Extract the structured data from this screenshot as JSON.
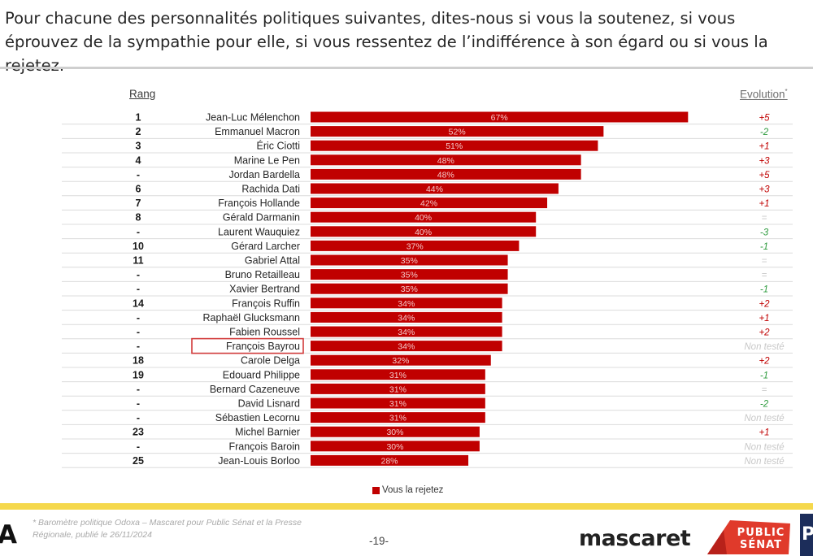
{
  "question": "Pour chacune des personnalités politiques suivantes, dites-nous si vous la soutenez, si vous éprouvez de la sympathie pour elle, si vous ressentez de l’indifférence à son égard ou si vous la rejetez.",
  "headers": {
    "rank": "Rang",
    "evolution": "Evolution",
    "evolution_mark": "*"
  },
  "colors": {
    "bar": "#c00000",
    "value_label": "#f4c9c9",
    "positive": "#c00000",
    "negative": "#2e9b3e",
    "neutral": "#c8c8c8",
    "highlight_box": "#d23c3c"
  },
  "highlighted_name": "François Bayrou",
  "chart_data": {
    "type": "bar",
    "orientation": "horizontal",
    "series_name": "Vous la rejetez",
    "value_unit": "%",
    "xlim": [
      0,
      100
    ],
    "rows": [
      {
        "rank": "1",
        "name": "Jean-Luc Mélenchon",
        "value": 67,
        "label": "67%",
        "evolution": "+5"
      },
      {
        "rank": "2",
        "name": "Emmanuel Macron",
        "value": 52,
        "label": "52%",
        "evolution": "-2"
      },
      {
        "rank": "3",
        "name": "Éric Ciotti",
        "value": 51,
        "label": "51%",
        "evolution": "+1"
      },
      {
        "rank": "4",
        "name": "Marine Le Pen",
        "value": 48,
        "label": "48%",
        "evolution": "+3"
      },
      {
        "rank": "-",
        "name": "Jordan Bardella",
        "value": 48,
        "label": "48%",
        "evolution": "+5"
      },
      {
        "rank": "6",
        "name": "Rachida Dati",
        "value": 44,
        "label": "44%",
        "evolution": "+3"
      },
      {
        "rank": "7",
        "name": "François Hollande",
        "value": 42,
        "label": "42%",
        "evolution": "+1"
      },
      {
        "rank": "8",
        "name": "Gérald Darmanin",
        "value": 40,
        "label": "40%",
        "evolution": "="
      },
      {
        "rank": "-",
        "name": "Laurent Wauquiez",
        "value": 40,
        "label": "40%",
        "evolution": "-3"
      },
      {
        "rank": "10",
        "name": "Gérard Larcher",
        "value": 37,
        "label": "37%",
        "evolution": "-1"
      },
      {
        "rank": "11",
        "name": "Gabriel Attal",
        "value": 35,
        "label": "35%",
        "evolution": "="
      },
      {
        "rank": "-",
        "name": "Bruno Retailleau",
        "value": 35,
        "label": "35%",
        "evolution": "="
      },
      {
        "rank": "-",
        "name": "Xavier Bertrand",
        "value": 35,
        "label": "35%",
        "evolution": "-1"
      },
      {
        "rank": "14",
        "name": "François Ruffin",
        "value": 34,
        "label": "34%",
        "evolution": "+2"
      },
      {
        "rank": "-",
        "name": "Raphaël Glucksmann",
        "value": 34,
        "label": "34%",
        "evolution": "+1"
      },
      {
        "rank": "-",
        "name": "Fabien Roussel",
        "value": 34,
        "label": "34%",
        "evolution": "+2"
      },
      {
        "rank": "-",
        "name": "François Bayrou",
        "value": 34,
        "label": "34%",
        "evolution": "Non testé"
      },
      {
        "rank": "18",
        "name": "Carole Delga",
        "value": 32,
        "label": "32%",
        "evolution": "+2"
      },
      {
        "rank": "19",
        "name": "Edouard Philippe",
        "value": 31,
        "label": "31%",
        "evolution": "-1"
      },
      {
        "rank": "-",
        "name": "Bernard Cazeneuve",
        "value": 31,
        "label": "31%",
        "evolution": "="
      },
      {
        "rank": "-",
        "name": "David Lisnard",
        "value": 31,
        "label": "31%",
        "evolution": "-2"
      },
      {
        "rank": "-",
        "name": "Sébastien Lecornu",
        "value": 31,
        "label": "31%",
        "evolution": "Non testé"
      },
      {
        "rank": "23",
        "name": "Michel Barnier",
        "value": 30,
        "label": "30%",
        "evolution": "+1"
      },
      {
        "rank": "-",
        "name": "François Baroin",
        "value": 30,
        "label": "30%",
        "evolution": "Non testé"
      },
      {
        "rank": "25",
        "name": "Jean-Louis Borloo",
        "value": 28,
        "label": "28%",
        "evolution": "Non testé"
      }
    ]
  },
  "legend": {
    "label": "Vous la rejetez"
  },
  "footer": {
    "footnote_line1": "* Baromètre politique Odoxa – Mascaret pour Public Sénat et la Presse",
    "footnote_line2": "Régionale, publié le 26/11/2024",
    "page_number": "-19-",
    "logo_left": "A",
    "logo_mascaret": "mascaret",
    "logo_public": "PUBLIC",
    "logo_senat": "SÉNAT",
    "logo_corner": "P"
  }
}
